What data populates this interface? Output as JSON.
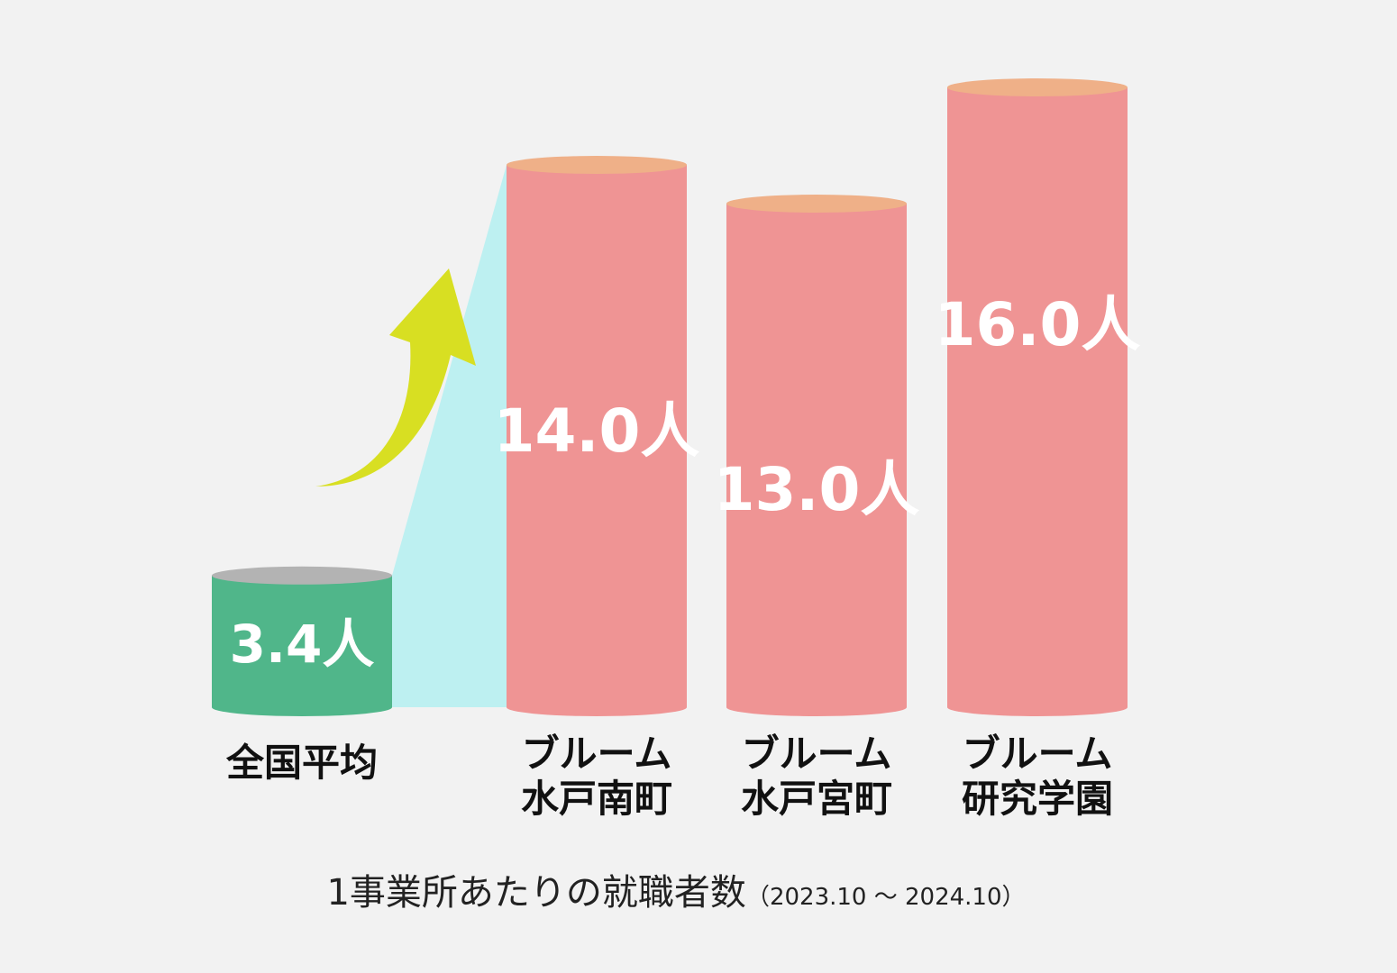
{
  "chart_data": {
    "type": "bar",
    "style": "3d-cylinder",
    "categories": [
      [
        "全国平均"
      ],
      [
        "ブルーム",
        "水戸南町"
      ],
      [
        "ブルーム",
        "水戸宮町"
      ],
      [
        "ブルーム",
        "研究学園"
      ]
    ],
    "values": [
      3.4,
      14.0,
      13.0,
      16.0
    ],
    "value_labels": [
      "3.4人",
      "14.0人",
      "13.0人",
      "16.0人"
    ],
    "unit": "人",
    "caption": "1事業所あたりの就職者数",
    "period": "（2023.10 ～ 2024.10）",
    "ylim": [
      0,
      16
    ],
    "colors": {
      "average_body": "#50b68a",
      "average_top": "#b3b3b3",
      "bar_body": "#ef9494",
      "bar_top": "#efb088",
      "highlight_band": "#bdf0f1",
      "arrow": "#d8df22",
      "background": "#f2f2f2"
    },
    "arrow_icon": "up-right-curved-arrow-icon"
  }
}
